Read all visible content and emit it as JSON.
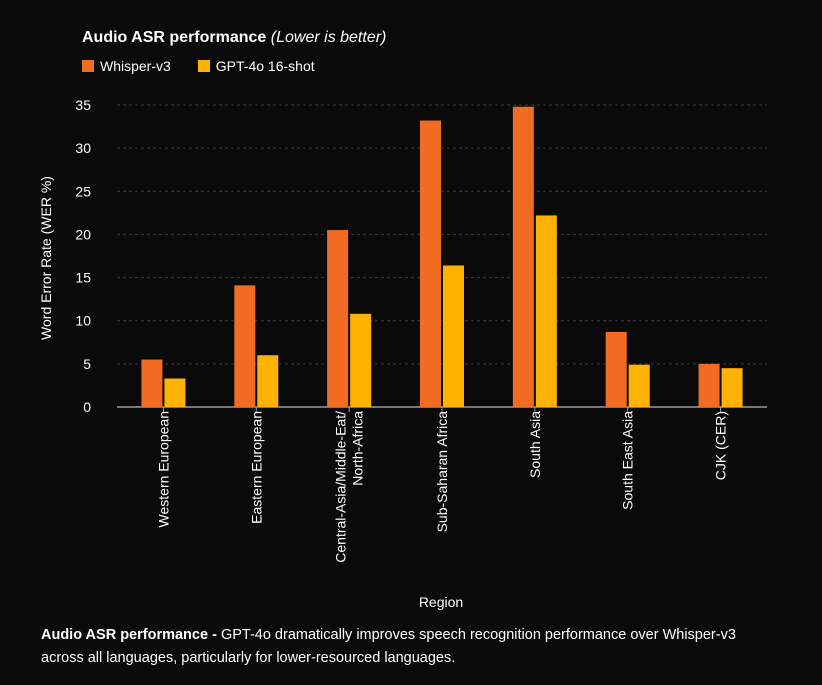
{
  "chart_data": {
    "type": "bar",
    "title": "Audio ASR performance",
    "subtitle": "(Lower is better)",
    "xlabel": "Region",
    "ylabel": "Word Error Rate (WER %)",
    "ylim": [
      0,
      35
    ],
    "yticks": [
      0,
      5,
      10,
      15,
      20,
      25,
      30,
      35
    ],
    "grid": true,
    "legend_position": "top-left",
    "categories": [
      [
        "Western European"
      ],
      [
        "Eastern European"
      ],
      [
        "Central-Asia/Middle-Eat/",
        "North-Africa"
      ],
      [
        "Sub-Saharan Africa"
      ],
      [
        "South Asia"
      ],
      [
        "South East Asia"
      ],
      [
        "CJK (CER)"
      ]
    ],
    "series": [
      {
        "name": "Whisper-v3",
        "color": "#f26b22",
        "values": [
          5.5,
          14.1,
          20.5,
          33.2,
          34.8,
          8.7,
          5.0
        ]
      },
      {
        "name": "GPT-4o 16-shot",
        "color": "#ffb300",
        "values": [
          3.3,
          6.0,
          10.8,
          16.4,
          22.2,
          4.9,
          4.5
        ]
      }
    ]
  },
  "caption": {
    "bold": "Audio ASR performance - ",
    "text": "GPT-4o dramatically improves speech recognition performance over Whisper-v3 across all languages, particularly for lower-resourced languages."
  },
  "colors": {
    "background": "#0a0a0a",
    "text": "#ffffff",
    "grid": "#3a3a3a",
    "axis": "#9a9a9a"
  }
}
